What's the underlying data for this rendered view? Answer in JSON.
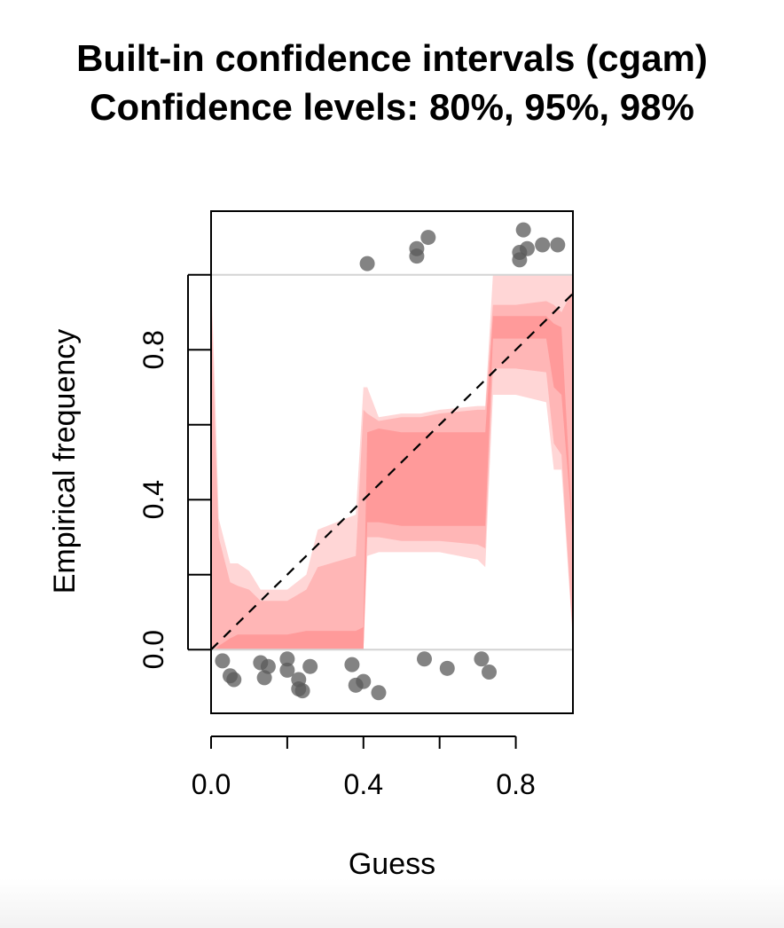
{
  "chart_data": {
    "type": "scatter",
    "title": "Built-in confidence intervals (cgam)",
    "subtitle": "Confidence levels: 80%, 95%, 98%",
    "xlabel": "Guess",
    "ylabel": "Empirical frequency",
    "xlim": [
      0.0,
      0.95
    ],
    "ylim": [
      -0.17,
      1.17
    ],
    "x_ticks": [
      0.0,
      0.2,
      0.4,
      0.6,
      0.8
    ],
    "x_tick_labels": [
      "0.0",
      "",
      "0.4",
      "",
      "0.8"
    ],
    "y_ticks": [
      0.0,
      0.2,
      0.4,
      0.6,
      0.8,
      1.0
    ],
    "y_tick_labels": [
      "0.0",
      "",
      "0.4",
      "",
      "0.8",
      ""
    ],
    "reference_lines": [
      0.0,
      1.0
    ],
    "diagonal": {
      "from": [
        0,
        0
      ],
      "to": [
        0.95,
        0.95
      ],
      "style": "dashed"
    },
    "bands": [
      {
        "level": "98%",
        "color": "#ffd6d6",
        "x": [
          0.0,
          0.01,
          0.02,
          0.05,
          0.07,
          0.1,
          0.13,
          0.2,
          0.25,
          0.28,
          0.38,
          0.4,
          0.41,
          0.44,
          0.5,
          0.55,
          0.6,
          0.7,
          0.72,
          0.74,
          0.8,
          0.88,
          0.9,
          0.92,
          0.95
        ],
        "lower": [
          0.0,
          0.0,
          0.0,
          0.0,
          0.0,
          0.0,
          0.0,
          0.0,
          0.0,
          0.0,
          0.0,
          0.0,
          0.25,
          0.26,
          0.26,
          0.26,
          0.26,
          0.24,
          0.22,
          0.68,
          0.68,
          0.66,
          0.48,
          0.48,
          0.02
        ],
        "upper": [
          1.0,
          0.7,
          0.35,
          0.23,
          0.23,
          0.21,
          0.16,
          0.16,
          0.2,
          0.32,
          0.36,
          0.7,
          0.7,
          0.62,
          0.63,
          0.63,
          0.64,
          0.65,
          0.65,
          1.0,
          1.0,
          1.0,
          1.0,
          1.0,
          1.0
        ]
      },
      {
        "level": "95%",
        "color": "#ffb6b6",
        "x": [
          0.0,
          0.01,
          0.02,
          0.05,
          0.07,
          0.1,
          0.13,
          0.2,
          0.25,
          0.28,
          0.38,
          0.4,
          0.41,
          0.44,
          0.5,
          0.55,
          0.6,
          0.7,
          0.72,
          0.74,
          0.8,
          0.88,
          0.9,
          0.92,
          0.95
        ],
        "lower": [
          0.0,
          0.0,
          0.0,
          0.0,
          0.0,
          0.0,
          0.0,
          0.0,
          0.0,
          0.0,
          0.0,
          0.0,
          0.3,
          0.3,
          0.29,
          0.29,
          0.29,
          0.28,
          0.27,
          0.75,
          0.75,
          0.74,
          0.55,
          0.52,
          0.03
        ],
        "upper": [
          0.98,
          0.6,
          0.3,
          0.18,
          0.17,
          0.16,
          0.13,
          0.13,
          0.16,
          0.22,
          0.25,
          0.64,
          0.63,
          0.61,
          0.62,
          0.62,
          0.63,
          0.64,
          0.64,
          0.92,
          0.92,
          0.93,
          0.92,
          0.9,
          0.96
        ]
      },
      {
        "level": "80%",
        "color": "#ff9a9a",
        "x": [
          0.0,
          0.01,
          0.02,
          0.05,
          0.07,
          0.1,
          0.13,
          0.2,
          0.25,
          0.28,
          0.38,
          0.4,
          0.41,
          0.44,
          0.5,
          0.55,
          0.6,
          0.7,
          0.72,
          0.74,
          0.8,
          0.88,
          0.9,
          0.92,
          0.95
        ],
        "lower": [
          0.0,
          0.0,
          0.0,
          0.0,
          0.0,
          0.0,
          0.0,
          0.0,
          0.0,
          0.0,
          0.0,
          0.0,
          0.34,
          0.34,
          0.33,
          0.33,
          0.33,
          0.33,
          0.33,
          0.83,
          0.83,
          0.83,
          0.7,
          0.68,
          0.3
        ],
        "upper": [
          0.0,
          0.0,
          0.01,
          0.03,
          0.04,
          0.04,
          0.04,
          0.04,
          0.05,
          0.05,
          0.05,
          0.06,
          0.58,
          0.59,
          0.58,
          0.58,
          0.58,
          0.58,
          0.58,
          0.89,
          0.89,
          0.89,
          0.87,
          0.86,
          0.3
        ]
      }
    ],
    "points": [
      {
        "x": 0.03,
        "y": -0.03
      },
      {
        "x": 0.05,
        "y": -0.07
      },
      {
        "x": 0.06,
        "y": -0.08
      },
      {
        "x": 0.13,
        "y": -0.035
      },
      {
        "x": 0.14,
        "y": -0.075
      },
      {
        "x": 0.15,
        "y": -0.045
      },
      {
        "x": 0.2,
        "y": -0.025
      },
      {
        "x": 0.2,
        "y": -0.055
      },
      {
        "x": 0.23,
        "y": -0.08
      },
      {
        "x": 0.23,
        "y": -0.105
      },
      {
        "x": 0.24,
        "y": -0.11
      },
      {
        "x": 0.26,
        "y": -0.045
      },
      {
        "x": 0.37,
        "y": -0.04
      },
      {
        "x": 0.38,
        "y": -0.095
      },
      {
        "x": 0.4,
        "y": -0.085
      },
      {
        "x": 0.44,
        "y": -0.115
      },
      {
        "x": 0.56,
        "y": -0.025
      },
      {
        "x": 0.62,
        "y": -0.05
      },
      {
        "x": 0.71,
        "y": -0.025
      },
      {
        "x": 0.73,
        "y": -0.06
      },
      {
        "x": 0.41,
        "y": 1.03
      },
      {
        "x": 0.54,
        "y": 1.07
      },
      {
        "x": 0.54,
        "y": 1.05
      },
      {
        "x": 0.57,
        "y": 1.1
      },
      {
        "x": 0.81,
        "y": 1.04
      },
      {
        "x": 0.81,
        "y": 1.06
      },
      {
        "x": 0.82,
        "y": 1.12
      },
      {
        "x": 0.83,
        "y": 1.07
      },
      {
        "x": 0.87,
        "y": 1.08
      },
      {
        "x": 0.91,
        "y": 1.08
      }
    ],
    "point_color": "#595959",
    "grid": false
  }
}
